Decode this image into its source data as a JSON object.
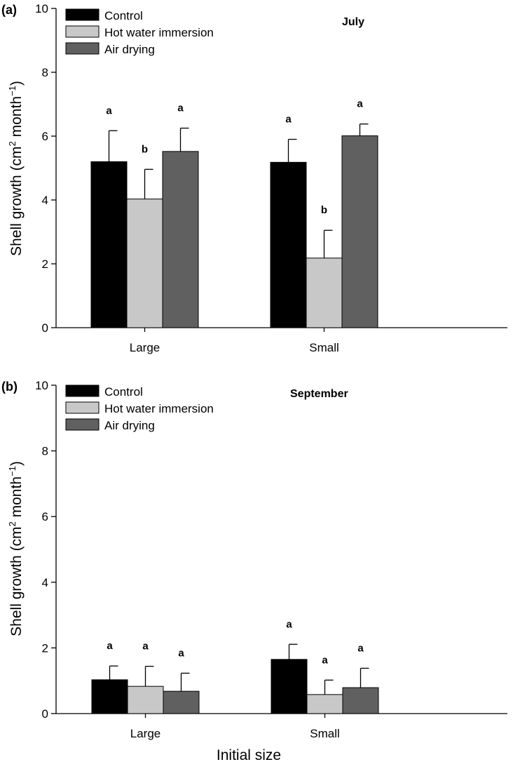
{
  "colors": {
    "control": "#000000",
    "hot_water": "#c8c8c8",
    "air_drying": "#606060",
    "axis": "#000000"
  },
  "chart_data": [
    {
      "type": "bar",
      "panel_label": "(a)",
      "month": "July",
      "categories": [
        "Large",
        "Small"
      ],
      "ylabel": "Shell growth (cm",
      "ylabel_sup": "2",
      "ylabel_mid": " month",
      "ylabel_sup2": "−1",
      "ylabel_end": ")",
      "xlabel": "",
      "ylim": [
        0,
        10
      ],
      "yticks": [
        "0",
        "2",
        "4",
        "6",
        "8",
        "10"
      ],
      "legend_position": "top-left",
      "series": [
        {
          "name": "Control",
          "values": [
            5.2,
            5.18
          ],
          "errors": [
            0.97,
            0.72
          ],
          "letters": [
            "a",
            "a"
          ]
        },
        {
          "name": "Hot water immersion",
          "values": [
            4.03,
            2.18
          ],
          "errors": [
            0.93,
            0.87
          ],
          "letters": [
            "b",
            "b"
          ]
        },
        {
          "name": "Air drying",
          "values": [
            5.52,
            6.01
          ],
          "errors": [
            0.73,
            0.37
          ],
          "letters": [
            "a",
            "a"
          ]
        }
      ]
    },
    {
      "type": "bar",
      "panel_label": "(b)",
      "month": "September",
      "categories": [
        "Large",
        "Small"
      ],
      "ylabel": "Shell growth (cm",
      "ylabel_sup": "2",
      "ylabel_mid": " month",
      "ylabel_sup2": "−1",
      "ylabel_end": ")",
      "xlabel": "Initial size",
      "ylim": [
        0,
        10
      ],
      "yticks": [
        "0",
        "2",
        "4",
        "6",
        "8",
        "10"
      ],
      "legend_position": "top-left",
      "series": [
        {
          "name": "Control",
          "values": [
            1.03,
            1.65
          ],
          "errors": [
            0.42,
            0.46
          ],
          "letters": [
            "a",
            "a"
          ]
        },
        {
          "name": "Hot water immersion",
          "values": [
            0.83,
            0.58
          ],
          "errors": [
            0.61,
            0.44
          ],
          "letters": [
            "a",
            "a"
          ]
        },
        {
          "name": "Air drying",
          "values": [
            0.68,
            0.79
          ],
          "errors": [
            0.55,
            0.59
          ],
          "letters": [
            "a",
            "a"
          ]
        }
      ]
    }
  ]
}
